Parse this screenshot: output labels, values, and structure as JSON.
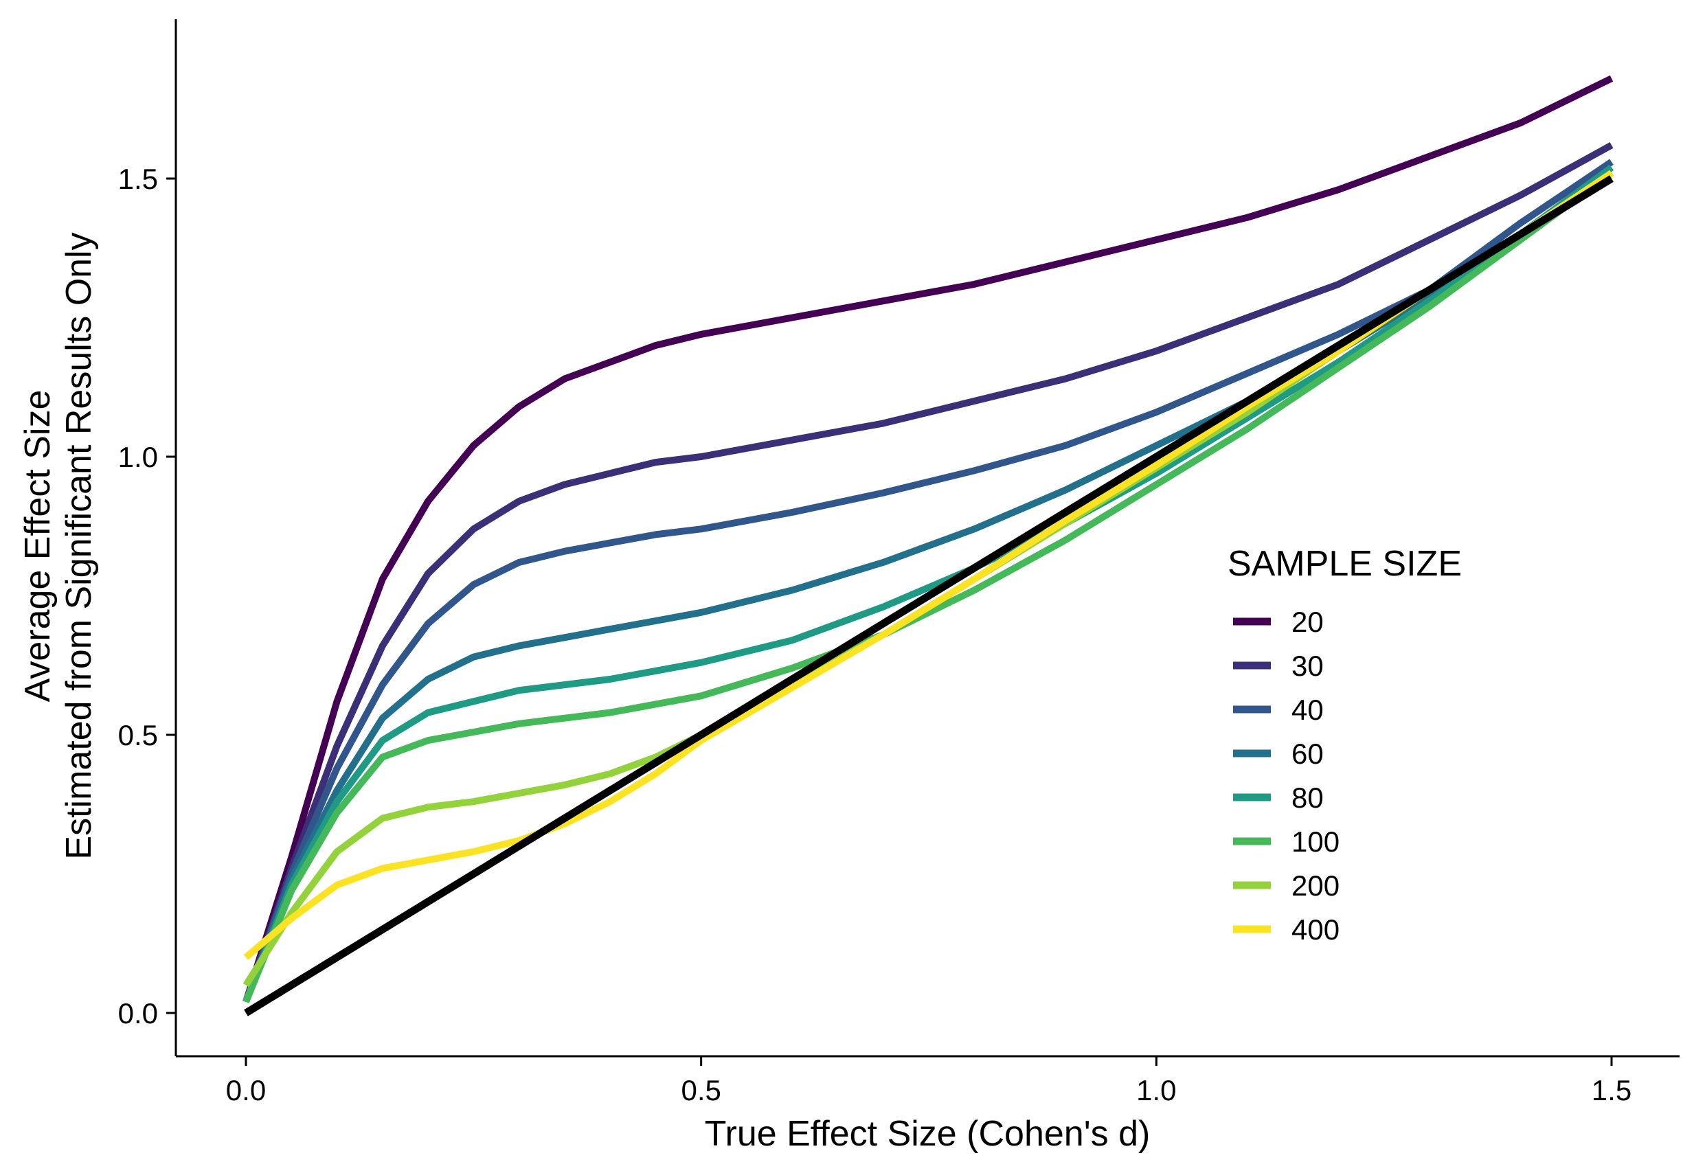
{
  "chart_data": {
    "type": "line",
    "xlabel": "True Effect Size (Cohen's d)",
    "ylabel_lines": [
      "Average Effect Size",
      "Estimated from Significant Results Only"
    ],
    "xlim": [
      -0.08,
      1.58
    ],
    "ylim": [
      -0.08,
      1.79
    ],
    "xticks": [
      "0.0",
      "0.5",
      "1.0",
      "1.5"
    ],
    "yticks": [
      "0.0",
      "0.5",
      "1.0",
      "1.5"
    ],
    "legend": {
      "title": "SAMPLE SIZE",
      "position": "right"
    },
    "reference_line": {
      "x": [
        0,
        1.5
      ],
      "y": [
        0,
        1.5
      ],
      "color": "#000000"
    },
    "x": [
      0,
      0.05,
      0.1,
      0.15,
      0.2,
      0.25,
      0.3,
      0.35,
      0.4,
      0.45,
      0.5,
      0.6,
      0.7,
      0.8,
      0.9,
      1.0,
      1.1,
      1.2,
      1.3,
      1.4,
      1.5
    ],
    "series": [
      {
        "name": "20",
        "color": "#440154",
        "values": [
          0.02,
          0.28,
          0.56,
          0.78,
          0.92,
          1.02,
          1.09,
          1.14,
          1.17,
          1.2,
          1.22,
          1.25,
          1.28,
          1.31,
          1.35,
          1.39,
          1.43,
          1.48,
          1.54,
          1.6,
          1.68
        ]
      },
      {
        "name": "30",
        "color": "#3b2f78",
        "values": [
          0.02,
          0.26,
          0.48,
          0.66,
          0.79,
          0.87,
          0.92,
          0.95,
          0.97,
          0.99,
          1.0,
          1.03,
          1.06,
          1.1,
          1.14,
          1.19,
          1.25,
          1.31,
          1.39,
          1.47,
          1.56
        ]
      },
      {
        "name": "40",
        "color": "#31568c",
        "values": [
          0.02,
          0.25,
          0.44,
          0.59,
          0.7,
          0.77,
          0.81,
          0.83,
          0.845,
          0.86,
          0.87,
          0.9,
          0.935,
          0.975,
          1.02,
          1.08,
          1.15,
          1.22,
          1.3,
          1.42,
          1.53
        ]
      },
      {
        "name": "60",
        "color": "#22708c",
        "values": [
          0.02,
          0.24,
          0.4,
          0.53,
          0.6,
          0.64,
          0.66,
          0.675,
          0.69,
          0.705,
          0.72,
          0.76,
          0.81,
          0.87,
          0.94,
          1.02,
          1.1,
          1.19,
          1.29,
          1.4,
          1.52
        ]
      },
      {
        "name": "80",
        "color": "#1f9a85",
        "values": [
          0.02,
          0.23,
          0.38,
          0.49,
          0.54,
          0.56,
          0.58,
          0.59,
          0.6,
          0.615,
          0.63,
          0.67,
          0.73,
          0.8,
          0.88,
          0.97,
          1.07,
          1.17,
          1.28,
          1.4,
          1.52
        ]
      },
      {
        "name": "100",
        "color": "#45b85a",
        "values": [
          0.02,
          0.22,
          0.36,
          0.46,
          0.49,
          0.505,
          0.52,
          0.53,
          0.54,
          0.555,
          0.57,
          0.62,
          0.68,
          0.76,
          0.85,
          0.95,
          1.05,
          1.16,
          1.27,
          1.39,
          1.51
        ]
      },
      {
        "name": "200",
        "color": "#94d23c",
        "values": [
          0.05,
          0.18,
          0.29,
          0.35,
          0.37,
          0.38,
          0.395,
          0.41,
          0.43,
          0.46,
          0.5,
          0.59,
          0.68,
          0.78,
          0.88,
          0.98,
          1.08,
          1.19,
          1.3,
          1.4,
          1.51
        ]
      },
      {
        "name": "400",
        "color": "#fbe323",
        "values": [
          0.1,
          0.17,
          0.23,
          0.26,
          0.275,
          0.29,
          0.31,
          0.34,
          0.38,
          0.43,
          0.49,
          0.585,
          0.68,
          0.78,
          0.885,
          0.985,
          1.09,
          1.19,
          1.3,
          1.4,
          1.51
        ]
      }
    ]
  }
}
